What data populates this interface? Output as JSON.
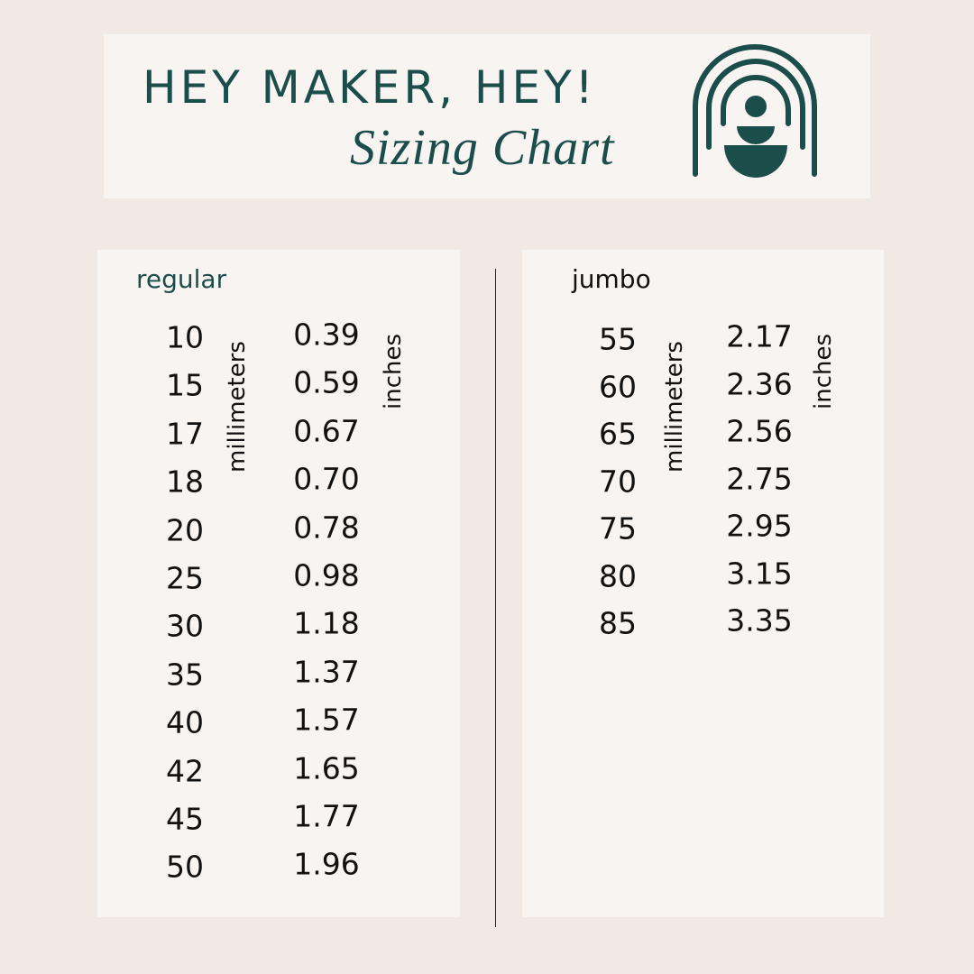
{
  "header": {
    "title": "HEY MAKER, HEY!",
    "subtitle": "Sizing Chart",
    "logo": "rainbow-arch-figure-logo"
  },
  "colors": {
    "accent": "#1b4d4b",
    "background": "#f2e9e4",
    "panel": "#f8f4f1"
  },
  "regular": {
    "heading": "regular",
    "mm_label": "millimeters",
    "in_label": "inches",
    "rows": [
      {
        "mm": "10",
        "in": "0.39"
      },
      {
        "mm": "15",
        "in": "0.59"
      },
      {
        "mm": "17",
        "in": "0.67"
      },
      {
        "mm": "18",
        "in": "0.70"
      },
      {
        "mm": "20",
        "in": "0.78"
      },
      {
        "mm": "25",
        "in": "0.98"
      },
      {
        "mm": "30",
        "in": "1.18"
      },
      {
        "mm": "35",
        "in": "1.37"
      },
      {
        "mm": "40",
        "in": "1.57"
      },
      {
        "mm": "42",
        "in": "1.65"
      },
      {
        "mm": "45",
        "in": "1.77"
      },
      {
        "mm": "50",
        "in": "1.96"
      }
    ]
  },
  "jumbo": {
    "heading": "jumbo",
    "mm_label": "millimeters",
    "in_label": "inches",
    "rows": [
      {
        "mm": "55",
        "in": "2.17"
      },
      {
        "mm": "60",
        "in": "2.36"
      },
      {
        "mm": "65",
        "in": "2.56"
      },
      {
        "mm": "70",
        "in": "2.75"
      },
      {
        "mm": "75",
        "in": "2.95"
      },
      {
        "mm": "80",
        "in": "3.15"
      },
      {
        "mm": "85",
        "in": "3.35"
      }
    ]
  }
}
